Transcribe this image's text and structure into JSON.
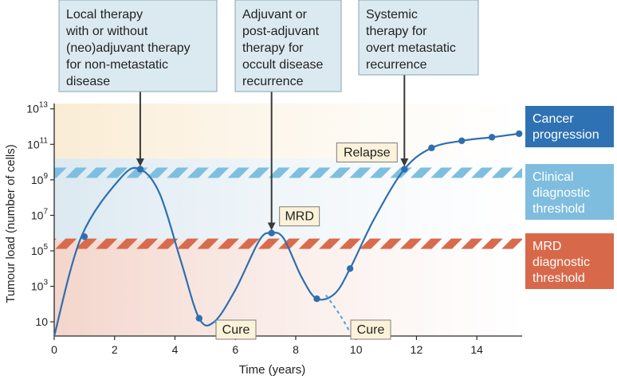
{
  "chart_data": {
    "type": "line",
    "title": "",
    "xlabel": "Time (years)",
    "ylabel": "Tumour load (number of cells)",
    "x_ticks": [
      {
        "value": 0,
        "label": "0"
      },
      {
        "value": 2,
        "label": "2"
      },
      {
        "value": 4,
        "label": "4"
      },
      {
        "value": 6,
        "label": "6"
      },
      {
        "value": 8,
        "label": "8"
      },
      {
        "value": 10,
        "label": "10"
      },
      {
        "value": 12,
        "label": "12"
      },
      {
        "value": 14,
        "label": "14"
      }
    ],
    "y_ticks": [
      {
        "exp": 1,
        "base": "10",
        "sup": ""
      },
      {
        "exp": 3,
        "base": "10",
        "sup": "3"
      },
      {
        "exp": 5,
        "base": "10",
        "sup": "5"
      },
      {
        "exp": 7,
        "base": "10",
        "sup": "7"
      },
      {
        "exp": 9,
        "base": "10",
        "sup": "9"
      },
      {
        "exp": 11,
        "base": "10",
        "sup": "11"
      },
      {
        "exp": 13,
        "base": "10",
        "sup": "13"
      }
    ],
    "xlim": [
      0,
      15.5
    ],
    "ylim_log10": [
      0.2,
      13.3
    ],
    "y_scale": "log",
    "zones": [
      {
        "from_exp": 0.2,
        "to_exp": 5.6,
        "color": "#f3d5cb"
      },
      {
        "from_exp": 5.6,
        "to_exp": 10.2,
        "color": "#dce9f1"
      },
      {
        "from_exp": 10.2,
        "to_exp": 13.3,
        "color": "#faecd4"
      }
    ],
    "thresholds": [
      {
        "label": "Clinical diagnostic threshold",
        "exp": 9.4,
        "color": "#7ebfdf"
      },
      {
        "label": "MRD diagnostic threshold",
        "exp": 5.4,
        "color": "#d86b4d"
      }
    ],
    "series": [
      {
        "curve": [
          [
            0,
            0.2
          ],
          [
            0.9,
            5.8
          ],
          [
            2.2,
            9.1
          ],
          [
            2.85,
            9.6
          ],
          [
            3.5,
            8.2
          ],
          [
            4.2,
            4.4
          ],
          [
            4.8,
            1.2
          ],
          [
            5.3,
            1.0
          ],
          [
            6.0,
            2.8
          ],
          [
            6.8,
            5.6
          ],
          [
            7.2,
            6.0
          ],
          [
            7.6,
            5.7
          ],
          [
            8.2,
            3.5
          ],
          [
            8.7,
            2.3
          ],
          [
            9.3,
            2.6
          ],
          [
            9.8,
            4.0
          ],
          [
            10.6,
            6.8
          ],
          [
            11.6,
            9.6
          ],
          [
            12.5,
            10.8
          ],
          [
            13.5,
            11.2
          ],
          [
            14.5,
            11.4
          ],
          [
            15.4,
            11.6
          ]
        ],
        "points": [
          [
            1.0,
            5.8
          ],
          [
            2.85,
            9.6
          ],
          [
            4.8,
            1.2
          ],
          [
            7.2,
            6.0
          ],
          [
            8.7,
            2.3
          ],
          [
            9.8,
            4.0
          ],
          [
            11.6,
            9.6
          ],
          [
            12.5,
            10.8
          ],
          [
            13.5,
            11.2
          ],
          [
            14.5,
            11.4
          ],
          [
            15.4,
            11.6
          ]
        ],
        "dashed_branches": [
          [
            [
              5.3,
              1.0
            ],
            [
              5.7,
              0.8
            ],
            [
              6.0,
              0.4
            ]
          ],
          [
            [
              9.0,
              2.5
            ],
            [
              9.5,
              1.4
            ],
            [
              9.8,
              0.4
            ]
          ]
        ],
        "color": "#2f6fb0"
      }
    ],
    "annotations": [
      {
        "text": "Local therapy\nwith or without\n(neo)adjuvant therapy\nfor non-metastatic\ndisease",
        "arrow_to": [
          2.85,
          9.8
        ]
      },
      {
        "text": "Adjuvant or\npost-adjuvant\ntherapy for\noccult disease\nrecurrence",
        "arrow_to": [
          7.2,
          6.2
        ]
      },
      {
        "text": "Systemic\ntherapy for\novert metastatic\nrecurrence",
        "arrow_to": [
          11.6,
          9.8
        ]
      }
    ],
    "point_labels": [
      {
        "text": "Relapse",
        "x": 11.6,
        "exp": 9.6
      },
      {
        "text": "MRD",
        "x": 7.2,
        "exp": 6.0
      },
      {
        "text": "Cure",
        "x": 5.3,
        "exp": 0.5
      },
      {
        "text": "Cure",
        "x": 9.8,
        "exp": 0.5
      }
    ],
    "legend": [
      {
        "text": "Cancer\nprogression",
        "bg": "#2f72b3",
        "fg": "#ffffff"
      },
      {
        "text": "Clinical\ndiagnostic\nthreshold",
        "bg": "#7fbddf",
        "fg": "#ffffff"
      },
      {
        "text": "MRD\ndiagnostic\nthreshold",
        "bg": "#d8684a",
        "fg": "#ffffff"
      }
    ],
    "legend_placement": "right",
    "grid": false
  }
}
